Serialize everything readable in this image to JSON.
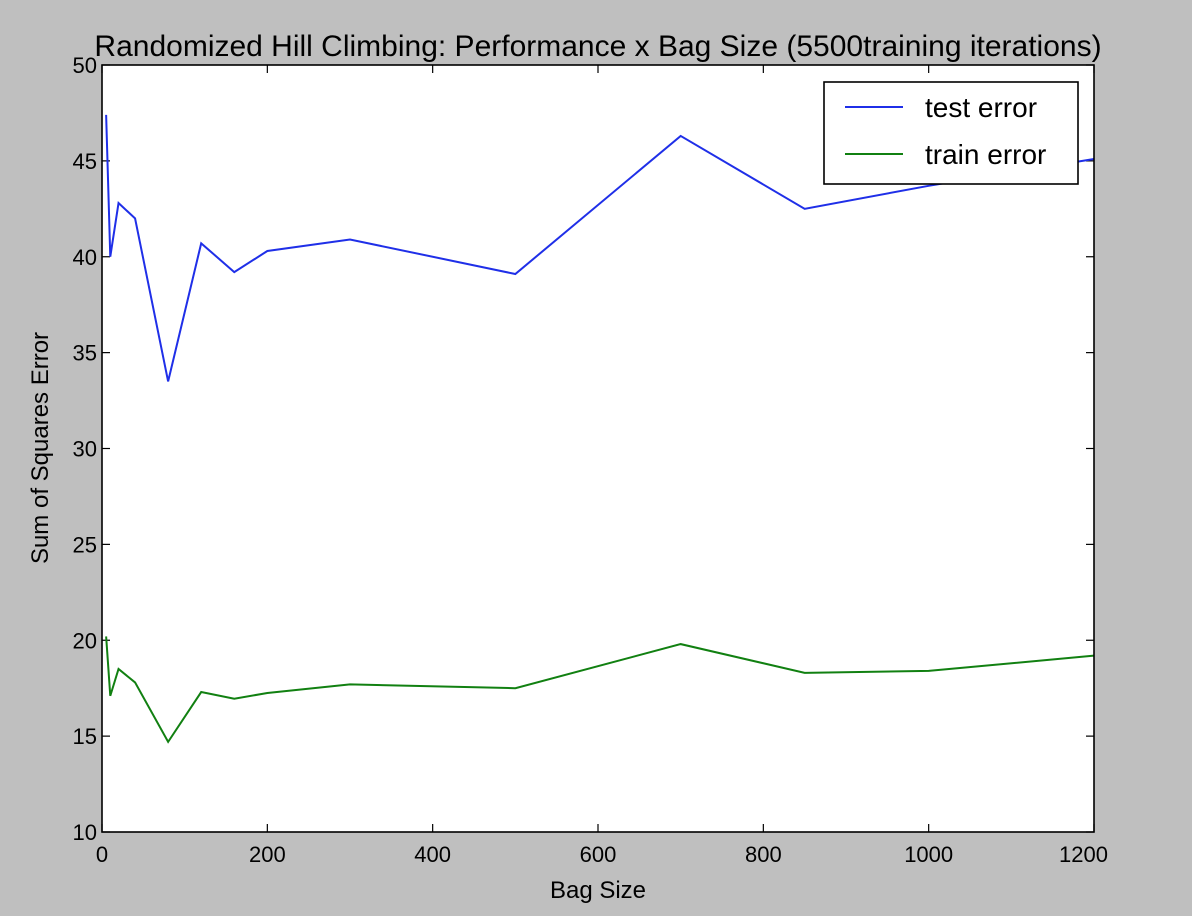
{
  "chart_data": {
    "type": "line",
    "title_prefix": "Randomized Hill Climbing: Performance x Bag Size (",
    "title_number": "5500",
    "title_suffix": "training iterations)",
    "xlabel": "Bag Size",
    "ylabel": "Sum of Squares Error",
    "xlim": [
      0,
      1200
    ],
    "ylim": [
      10,
      50
    ],
    "xticks": [
      "0",
      "200",
      "400",
      "600",
      "800",
      "1000",
      "1200"
    ],
    "yticks": [
      "10",
      "15",
      "20",
      "25",
      "30",
      "35",
      "40",
      "45",
      "50"
    ],
    "grid": false,
    "legend_position": "top-right",
    "series": [
      {
        "name": "test error",
        "color": "#1f2fe8",
        "points": [
          [
            5,
            47.4
          ],
          [
            10,
            40.0
          ],
          [
            20,
            42.8
          ],
          [
            40,
            42.0
          ],
          [
            80,
            33.5
          ],
          [
            120,
            40.7
          ],
          [
            160,
            39.2
          ],
          [
            200,
            40.3
          ],
          [
            300,
            40.9
          ],
          [
            500,
            39.1
          ],
          [
            700,
            46.3
          ],
          [
            850,
            42.5
          ],
          [
            1000,
            43.7
          ],
          [
            1200,
            45.1
          ]
        ]
      },
      {
        "name": "train error",
        "color": "#118011",
        "points": [
          [
            5,
            20.2
          ],
          [
            10,
            17.1
          ],
          [
            20,
            18.5
          ],
          [
            40,
            17.8
          ],
          [
            80,
            14.7
          ],
          [
            120,
            17.3
          ],
          [
            160,
            16.95
          ],
          [
            200,
            17.25
          ],
          [
            300,
            17.7
          ],
          [
            500,
            17.5
          ],
          [
            700,
            19.8
          ],
          [
            850,
            18.3
          ],
          [
            1000,
            18.4
          ],
          [
            1200,
            19.2
          ]
        ]
      }
    ]
  }
}
